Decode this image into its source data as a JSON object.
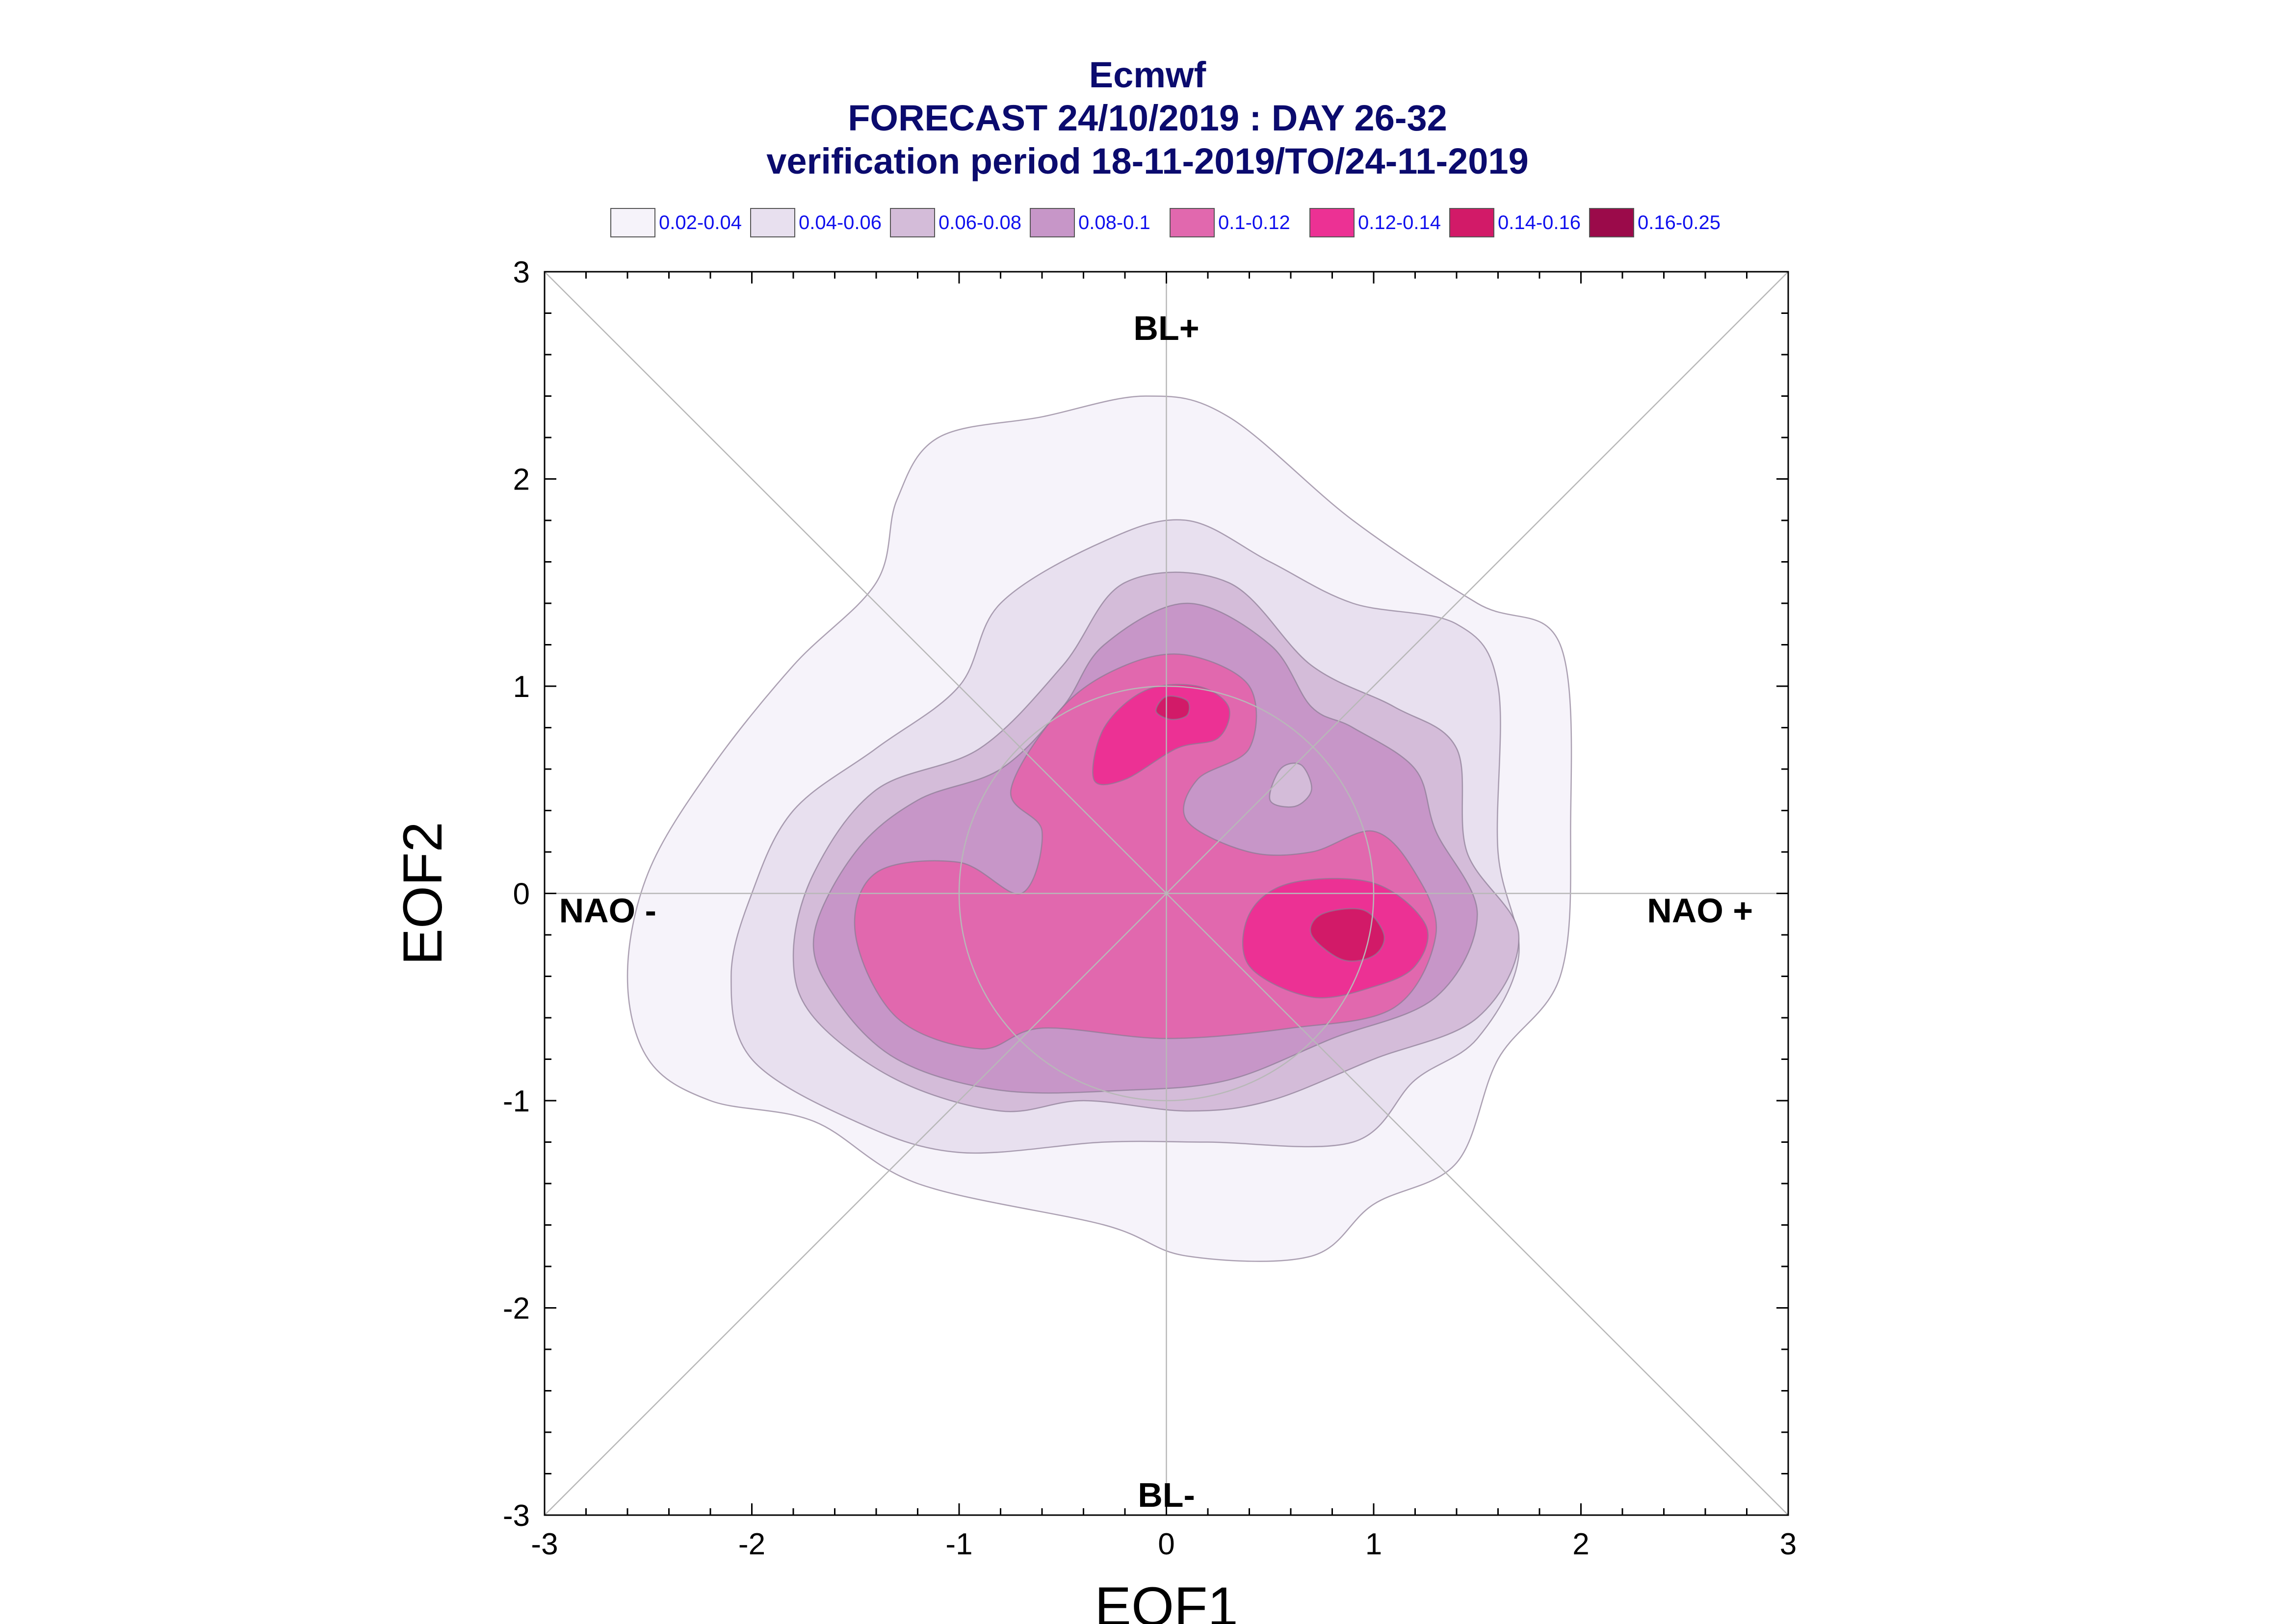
{
  "chart_data": {
    "type": "contour",
    "title": "Ecmwf",
    "subtitle_lines": [
      "FORECAST 24/10/2019 : DAY 26-32",
      "verification period 18-11-2019/TO/24-11-2019"
    ],
    "xlabel": "EOF1",
    "ylabel": "EOF2",
    "xlim": [
      -3,
      3
    ],
    "ylim": [
      -3,
      3
    ],
    "xticks": [
      -3,
      -2,
      -1,
      0,
      1,
      2,
      3
    ],
    "yticks": [
      -3,
      -2,
      -1,
      0,
      1,
      2,
      3
    ],
    "grid": false,
    "legend_position": "top",
    "legend": [
      {
        "label": "0.02-0.04",
        "color": "#f6f3fa"
      },
      {
        "label": "0.04-0.06",
        "color": "#e8e0ef"
      },
      {
        "label": "0.06-0.08",
        "color": "#d4bcd9"
      },
      {
        "label": "0.08-0.1",
        "color": "#c796c8"
      },
      {
        "label": "0.1-0.12",
        "color": "#e168ae"
      },
      {
        "label": "0.12-0.14",
        "color": "#ec3194"
      },
      {
        "label": "0.14-0.16",
        "color": "#d21a68"
      },
      {
        "label": "0.16-0.25",
        "color": "#9b0a4a"
      }
    ],
    "regime_labels": {
      "top": "BL+",
      "bottom": "BL-",
      "left": "NAO -",
      "right": "NAO +"
    },
    "contours": [
      {
        "level": "0.02-0.04",
        "points": [
          [
            -2.6,
            -0.4
          ],
          [
            -2.5,
            0.1
          ],
          [
            -2.2,
            0.6
          ],
          [
            -1.8,
            1.1
          ],
          [
            -1.4,
            1.5
          ],
          [
            -1.3,
            1.9
          ],
          [
            -1.1,
            2.2
          ],
          [
            -0.6,
            2.3
          ],
          [
            -0.1,
            2.4
          ],
          [
            0.3,
            2.3
          ],
          [
            0.9,
            1.8
          ],
          [
            1.5,
            1.4
          ],
          [
            1.9,
            1.2
          ],
          [
            1.95,
            0.3
          ],
          [
            1.9,
            -0.4
          ],
          [
            1.6,
            -0.8
          ],
          [
            1.4,
            -1.3
          ],
          [
            1.0,
            -1.5
          ],
          [
            0.7,
            -1.75
          ],
          [
            0.1,
            -1.75
          ],
          [
            -0.3,
            -1.6
          ],
          [
            -1.2,
            -1.4
          ],
          [
            -1.7,
            -1.1
          ],
          [
            -2.2,
            -1.0
          ],
          [
            -2.5,
            -0.8
          ]
        ]
      },
      {
        "level": "0.04-0.06",
        "points": [
          [
            -2.1,
            -0.4
          ],
          [
            -2.0,
            0.0
          ],
          [
            -1.8,
            0.4
          ],
          [
            -1.4,
            0.7
          ],
          [
            -1.0,
            1.0
          ],
          [
            -0.8,
            1.4
          ],
          [
            -0.3,
            1.7
          ],
          [
            0.1,
            1.8
          ],
          [
            0.5,
            1.6
          ],
          [
            0.9,
            1.4
          ],
          [
            1.4,
            1.3
          ],
          [
            1.6,
            1.0
          ],
          [
            1.6,
            0.2
          ],
          [
            1.7,
            -0.3
          ],
          [
            1.5,
            -0.7
          ],
          [
            1.2,
            -0.9
          ],
          [
            0.9,
            -1.2
          ],
          [
            0.2,
            -1.2
          ],
          [
            -0.3,
            -1.2
          ],
          [
            -1.0,
            -1.25
          ],
          [
            -1.5,
            -1.1
          ],
          [
            -2.0,
            -0.8
          ]
        ]
      },
      {
        "level": "0.06-0.08",
        "points": [
          [
            -1.8,
            -0.3
          ],
          [
            -1.7,
            0.1
          ],
          [
            -1.4,
            0.5
          ],
          [
            -0.9,
            0.7
          ],
          [
            -0.5,
            1.1
          ],
          [
            -0.2,
            1.5
          ],
          [
            0.3,
            1.5
          ],
          [
            0.7,
            1.1
          ],
          [
            1.1,
            0.9
          ],
          [
            1.4,
            0.7
          ],
          [
            1.45,
            0.2
          ],
          [
            1.7,
            -0.2
          ],
          [
            1.5,
            -0.6
          ],
          [
            1.0,
            -0.8
          ],
          [
            0.5,
            -1.0
          ],
          [
            0.1,
            -1.05
          ],
          [
            -0.4,
            -1.0
          ],
          [
            -0.8,
            -1.05
          ],
          [
            -1.3,
            -0.9
          ],
          [
            -1.7,
            -0.6
          ]
        ]
      },
      {
        "level": "0.08-0.1",
        "points": [
          [
            -1.7,
            -0.2
          ],
          [
            -1.5,
            0.2
          ],
          [
            -1.2,
            0.45
          ],
          [
            -0.8,
            0.6
          ],
          [
            -0.5,
            0.9
          ],
          [
            -0.3,
            1.2
          ],
          [
            0.1,
            1.4
          ],
          [
            0.5,
            1.2
          ],
          [
            0.7,
            0.9
          ],
          [
            0.9,
            0.8
          ],
          [
            1.2,
            0.6
          ],
          [
            1.3,
            0.3
          ],
          [
            1.5,
            -0.1
          ],
          [
            1.3,
            -0.5
          ],
          [
            0.8,
            -0.7
          ],
          [
            0.3,
            -0.9
          ],
          [
            -0.2,
            -0.95
          ],
          [
            -0.8,
            -0.95
          ],
          [
            -1.3,
            -0.8
          ],
          [
            -1.6,
            -0.5
          ]
        ]
      },
      {
        "level": "0.1-0.12",
        "points": [
          [
            -1.5,
            -0.2
          ],
          [
            -1.4,
            0.1
          ],
          [
            -1.0,
            0.15
          ],
          [
            -0.7,
            0.0
          ],
          [
            -0.6,
            0.3
          ],
          [
            -0.75,
            0.5
          ],
          [
            -0.5,
            0.9
          ],
          [
            -0.2,
            1.1
          ],
          [
            0.1,
            1.15
          ],
          [
            0.4,
            1.0
          ],
          [
            0.4,
            0.7
          ],
          [
            0.15,
            0.55
          ],
          [
            0.1,
            0.35
          ],
          [
            0.4,
            0.2
          ],
          [
            0.7,
            0.2
          ],
          [
            1.0,
            0.3
          ],
          [
            1.2,
            0.1
          ],
          [
            1.3,
            -0.2
          ],
          [
            1.1,
            -0.55
          ],
          [
            0.6,
            -0.65
          ],
          [
            0.0,
            -0.7
          ],
          [
            -0.6,
            -0.65
          ],
          [
            -0.9,
            -0.75
          ],
          [
            -1.3,
            -0.6
          ]
        ]
      },
      {
        "level": "0.12-0.14",
        "points": [
          [
            0.4,
            -0.35
          ],
          [
            0.4,
            -0.1
          ],
          [
            0.6,
            0.05
          ],
          [
            1.0,
            0.05
          ],
          [
            1.25,
            -0.15
          ],
          [
            1.2,
            -0.35
          ],
          [
            1.0,
            -0.45
          ],
          [
            0.7,
            -0.5
          ]
        ]
      },
      {
        "level": "0.12-0.14",
        "points": [
          [
            -0.35,
            0.55
          ],
          [
            -0.3,
            0.8
          ],
          [
            -0.1,
            0.98
          ],
          [
            0.15,
            1.0
          ],
          [
            0.3,
            0.9
          ],
          [
            0.25,
            0.75
          ],
          [
            0.05,
            0.7
          ],
          [
            -0.2,
            0.55
          ]
        ]
      },
      {
        "level": "0.14-0.16",
        "points": [
          [
            0.7,
            -0.2
          ],
          [
            0.75,
            -0.1
          ],
          [
            0.95,
            -0.08
          ],
          [
            1.05,
            -0.2
          ],
          [
            1.0,
            -0.3
          ],
          [
            0.85,
            -0.32
          ]
        ]
      },
      {
        "level": "0.14-0.16",
        "points": [
          [
            -0.05,
            0.88
          ],
          [
            0.0,
            0.95
          ],
          [
            0.1,
            0.93
          ],
          [
            0.1,
            0.86
          ],
          [
            0.02,
            0.84
          ]
        ]
      }
    ],
    "holes": [
      {
        "level": "0.06-0.08",
        "points": [
          [
            0.5,
            0.45
          ],
          [
            0.55,
            0.6
          ],
          [
            0.65,
            0.62
          ],
          [
            0.7,
            0.5
          ],
          [
            0.62,
            0.42
          ]
        ]
      }
    ],
    "reference_circle_radius": 1.0,
    "diagonals": true
  }
}
